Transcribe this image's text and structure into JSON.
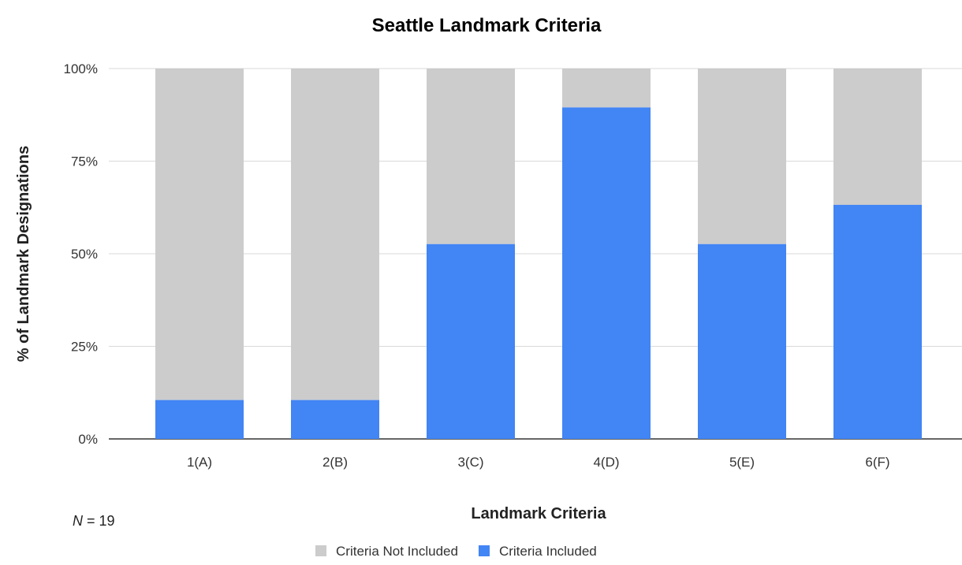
{
  "chart_data": {
    "type": "bar",
    "stacked": true,
    "percent_stacked": true,
    "title": "Seattle Landmark Criteria",
    "xlabel": "Landmark Criteria",
    "ylabel": "% of Landmark Designations",
    "categories": [
      "1(A)",
      "2(B)",
      "3(C)",
      "4(D)",
      "5(E)",
      "6(F)"
    ],
    "series": [
      {
        "name": "Criteria Included",
        "color": "#4285f4",
        "values": [
          10.5,
          10.5,
          52.6,
          89.5,
          52.6,
          63.2
        ]
      },
      {
        "name": "Criteria Not Included",
        "color": "#cccccc",
        "values": [
          89.5,
          89.5,
          47.4,
          10.5,
          47.4,
          36.8
        ]
      }
    ],
    "ylim": [
      0,
      100
    ],
    "yticks": [
      "0%",
      "25%",
      "50%",
      "75%",
      "100%"
    ],
    "grid": true,
    "legend_position": "bottom",
    "legend_order": [
      "Criteria Not Included",
      "Criteria Included"
    ],
    "note": {
      "prefix": "N",
      "suffix": " = 19"
    }
  }
}
